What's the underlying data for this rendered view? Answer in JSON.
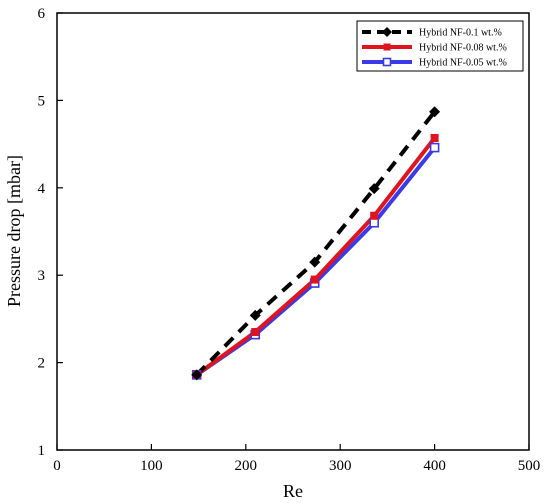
{
  "chart_data": {
    "type": "line",
    "xlabel": "Re",
    "ylabel": "Pressure drop [mbar]",
    "xlim": [
      0,
      500
    ],
    "ylim": [
      1,
      6
    ],
    "xticks": [
      0,
      100,
      200,
      300,
      400,
      500
    ],
    "yticks": [
      1,
      2,
      3,
      4,
      5,
      6
    ],
    "legend_position": "top-right",
    "grid": false,
    "series": [
      {
        "name": "Hybrid NF-0.1 wt.%",
        "color": "#000000",
        "line_style": "dashed",
        "marker": "diamond-filled",
        "x": [
          148,
          210,
          273,
          336,
          400
        ],
        "y": [
          1.86,
          2.54,
          3.15,
          3.99,
          4.87
        ]
      },
      {
        "name": "Hybrid NF-0.08 wt.%",
        "color": "#e0141e",
        "line_style": "solid",
        "marker": "square-filled",
        "x": [
          148,
          210,
          273,
          336,
          400
        ],
        "y": [
          1.86,
          2.35,
          2.95,
          3.68,
          4.57
        ]
      },
      {
        "name": "Hybrid NF-0.05 wt.%",
        "color": "#3a3ae8",
        "line_style": "solid",
        "marker": "square-open",
        "x": [
          148,
          210,
          273,
          336,
          400
        ],
        "y": [
          1.86,
          2.32,
          2.91,
          3.6,
          4.46
        ]
      }
    ]
  }
}
